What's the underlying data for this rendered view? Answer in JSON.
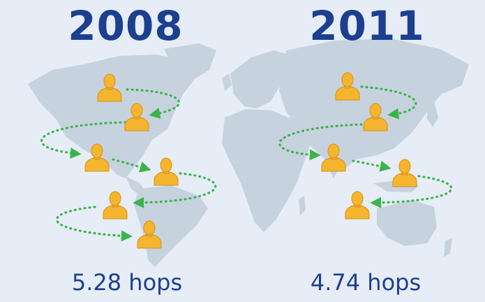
{
  "colors": {
    "background": "#e6edf6",
    "land": "#c7d2df",
    "title": "#1c3f8f",
    "person": "#f5b52e",
    "person_outline": "#d78f12",
    "arrow": "#3ab54a"
  },
  "panels": [
    {
      "year": "2008",
      "hops": "5.28 hops"
    },
    {
      "year": "2011",
      "hops": "4.74 hops"
    }
  ],
  "icons": {
    "person": "person-icon",
    "path": "dotted-arrow"
  }
}
